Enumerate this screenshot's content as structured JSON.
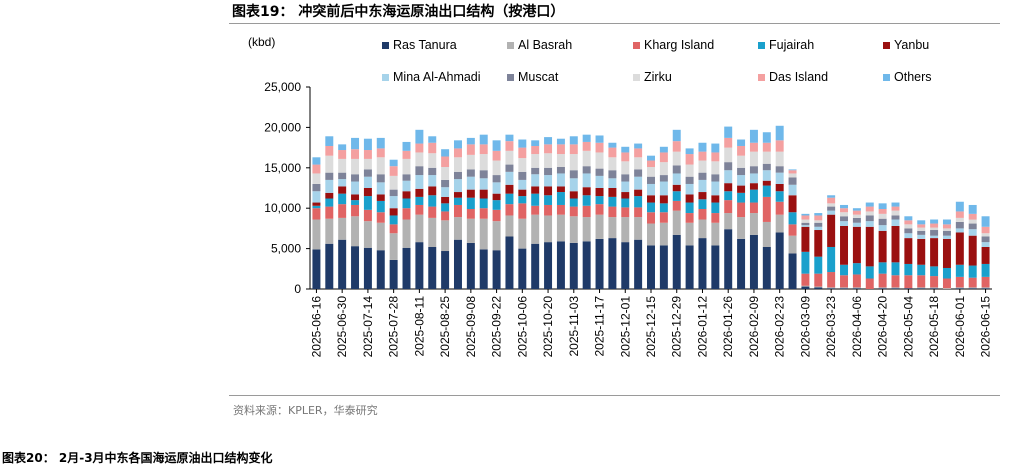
{
  "figure": {
    "title": "图表19： 冲突前后中东海运原油出口结构（按港口）",
    "source": "资料来源：KPLER，华泰研究",
    "next_title": "图表20： 2月-3月中东各国海运原油出口结构变化"
  },
  "chart_data": {
    "type": "bar",
    "stacked": true,
    "ylabel": "(kbd)",
    "ylim": [
      0,
      25000
    ],
    "yticks": [
      0,
      5000,
      10000,
      15000,
      20000,
      25000
    ],
    "ytick_labels": [
      "0",
      "5,000",
      "10,000",
      "15,000",
      "20,000",
      "25,000"
    ],
    "grid": false,
    "legend_position": "top",
    "categories": [
      "2025-06-16",
      "2025-06-23",
      "2025-06-30",
      "2025-07-07",
      "2025-07-14",
      "2025-07-21",
      "2025-07-28",
      "2025-08-04",
      "2025-08-11",
      "2025-08-18",
      "2025-08-25",
      "2025-09-01",
      "2025-09-08",
      "2025-09-15",
      "2025-09-22",
      "2025-09-29",
      "2025-10-06",
      "2025-10-13",
      "2025-10-20",
      "2025-10-27",
      "2025-11-03",
      "2025-11-10",
      "2025-11-17",
      "2025-11-24",
      "2025-12-01",
      "2025-12-08",
      "2025-12-15",
      "2025-12-22",
      "2025-12-29",
      "2026-01-05",
      "2026-01-12",
      "2026-01-19",
      "2026-01-26",
      "2026-02-02",
      "2026-02-09",
      "2026-02-16",
      "2026-02-23",
      "2026-03-02",
      "2026-03-09",
      "2026-03-16",
      "2026-03-23",
      "2026-03-30",
      "2026-04-06",
      "2026-04-13",
      "2026-04-20",
      "2026-04-27",
      "2026-05-04",
      "2026-05-11",
      "2026-05-18",
      "2026-05-25",
      "2026-06-01",
      "2026-06-08",
      "2026-06-15"
    ],
    "xtick_labels": [
      "2025-06-16",
      "2025-06-30",
      "2025-07-14",
      "2025-07-28",
      "2025-08-11",
      "2025-08-25",
      "2025-09-08",
      "2025-09-22",
      "2025-10-06",
      "2025-10-20",
      "2025-11-03",
      "2025-11-17",
      "2025-12-01",
      "2025-12-15",
      "2025-12-29",
      "2026-01-12",
      "2026-01-26",
      "2026-02-09",
      "2026-02-23",
      "2026-03-09",
      "2026-03-23",
      "2026-04-06",
      "2026-04-20",
      "2026-05-04",
      "2026-05-18",
      "2026-06-01",
      "2026-06-15"
    ],
    "series": [
      {
        "name": "Ras Tanura",
        "color": "#1f3a68",
        "values": [
          4900,
          5600,
          6100,
          5300,
          5100,
          4800,
          3600,
          5100,
          5800,
          5200,
          4700,
          6100,
          5700,
          4900,
          4800,
          6500,
          5000,
          5600,
          5800,
          5900,
          5700,
          5900,
          6200,
          6300,
          5800,
          6100,
          5400,
          5400,
          6700,
          5400,
          6300,
          5400,
          7400,
          6200,
          6700,
          5200,
          7000,
          4400,
          300,
          200,
          100,
          100,
          100,
          0,
          100,
          100,
          100,
          100,
          100,
          0,
          100,
          100,
          100
        ]
      },
      {
        "name": "Al Basrah",
        "color": "#b2b2b2",
        "values": [
          3700,
          3100,
          2700,
          3700,
          3300,
          3400,
          3300,
          3500,
          3400,
          3600,
          3800,
          2800,
          3000,
          3800,
          3600,
          2600,
          3700,
          3600,
          3300,
          3300,
          3300,
          3000,
          3000,
          2600,
          3100,
          2800,
          2700,
          2800,
          3000,
          2800,
          2300,
          2800,
          2000,
          2700,
          2700,
          3100,
          2200,
          2200,
          100,
          100,
          100,
          100,
          100,
          0,
          100,
          100,
          0,
          100,
          100,
          100,
          100,
          100,
          100
        ]
      },
      {
        "name": "Kharg Island",
        "color": "#e06464",
        "values": [
          1400,
          1500,
          1700,
          1400,
          1400,
          1300,
          1100,
          1400,
          1200,
          1400,
          1100,
          1500,
          1200,
          1300,
          1400,
          1400,
          1900,
          1100,
          1300,
          1200,
          1200,
          1400,
          1300,
          1300,
          1200,
          1200,
          1400,
          1300,
          1200,
          1200,
          1300,
          1200,
          1600,
          1800,
          1300,
          3100,
          1600,
          1400,
          1500,
          1600,
          1900,
          1500,
          1600,
          1300,
          1700,
          1500,
          1600,
          1500,
          1400,
          1200,
          1300,
          1200,
          1300
        ]
      },
      {
        "name": "Fujairah",
        "color": "#1aa0cc",
        "values": [
          300,
          1000,
          1300,
          600,
          1700,
          1400,
          1100,
          1200,
          1000,
          1400,
          1000,
          900,
          1400,
          1200,
          1200,
          1300,
          900,
          1500,
          1200,
          1600,
          1000,
          1300,
          1000,
          1200,
          1100,
          1400,
          1200,
          1100,
          1200,
          1300,
          1200,
          1300,
          1100,
          1200,
          1600,
          1400,
          1300,
          1500,
          2700,
          2100,
          3100,
          1300,
          1400,
          1500,
          1400,
          1600,
          1400,
          1300,
          1200,
          1300,
          1500,
          1500,
          1600
        ]
      },
      {
        "name": "Yanbu",
        "color": "#9a1010",
        "values": [
          400,
          700,
          900,
          700,
          1000,
          800,
          900,
          900,
          1000,
          1100,
          800,
          700,
          1000,
          1100,
          800,
          1100,
          800,
          900,
          1100,
          700,
          900,
          1000,
          1000,
          1100,
          800,
          800,
          900,
          1000,
          800,
          1000,
          900,
          900,
          1000,
          900,
          800,
          600,
          900,
          2100,
          3100,
          3300,
          4000,
          4800,
          4500,
          4900,
          3900,
          4500,
          3200,
          3200,
          3500,
          3600,
          4000,
          3700,
          2100
        ]
      },
      {
        "name": "Mina Al-Ahmadi",
        "color": "#a6d3ea",
        "values": [
          1400,
          1600,
          900,
          1600,
          1400,
          1500,
          1500,
          1300,
          1700,
          1400,
          1200,
          1600,
          1600,
          1400,
          1400,
          1600,
          1200,
          1500,
          1400,
          1600,
          1600,
          1700,
          1500,
          1200,
          1300,
          1600,
          1400,
          1700,
          1400,
          1300,
          1500,
          1700,
          1600,
          1300,
          1200,
          1300,
          1400,
          1300,
          200,
          400,
          500,
          600,
          500,
          700,
          700,
          800,
          600,
          500,
          300,
          400,
          500,
          800,
          600
        ]
      },
      {
        "name": "Muscat",
        "color": "#7e8399",
        "values": [
          900,
          900,
          800,
          900,
          900,
          1000,
          800,
          800,
          1100,
          900,
          900,
          900,
          900,
          1000,
          900,
          900,
          1000,
          800,
          900,
          800,
          1000,
          900,
          900,
          1000,
          900,
          900,
          900,
          800,
          1000,
          900,
          900,
          900,
          1000,
          900,
          900,
          800,
          800,
          900,
          300,
          500,
          500,
          600,
          600,
          700,
          800,
          500,
          600,
          500,
          700,
          600,
          800,
          700,
          700
        ]
      },
      {
        "name": "Zirku",
        "color": "#dcdcdc",
        "values": [
          1300,
          2100,
          1700,
          1900,
          1300,
          2100,
          1700,
          1900,
          1700,
          1800,
          1600,
          1800,
          1800,
          2000,
          1800,
          1700,
          1700,
          1700,
          1800,
          1600,
          2000,
          1900,
          2000,
          1600,
          1600,
          1500,
          1200,
          1600,
          1700,
          1500,
          1500,
          1600,
          1800,
          1500,
          1800,
          1500,
          1800,
          500,
          400,
          300,
          400,
          500,
          400,
          500,
          600,
          600,
          500,
          400,
          300,
          300,
          500,
          500,
          400
        ]
      },
      {
        "name": "Das Island",
        "color": "#f4a0a0",
        "values": [
          1100,
          1200,
          1100,
          1200,
          1100,
          1100,
          1200,
          1000,
          1100,
          1300,
          1300,
          1100,
          1300,
          1200,
          1200,
          1200,
          1300,
          1000,
          1100,
          1200,
          1200,
          1100,
          1200,
          1200,
          1100,
          1100,
          800,
          1200,
          1300,
          1300,
          1100,
          1100,
          1200,
          1200,
          1100,
          1100,
          1400,
          400,
          500,
          600,
          700,
          500,
          500,
          600,
          600,
          500,
          500,
          400,
          500,
          500,
          800,
          700,
          800
        ]
      },
      {
        "name": "Others",
        "color": "#6fb8ea",
        "values": [
          900,
          1200,
          700,
          1400,
          1400,
          1300,
          800,
          1100,
          1700,
          800,
          900,
          1000,
          800,
          1200,
          1300,
          800,
          1000,
          700,
          900,
          700,
          1000,
          900,
          900,
          600,
          700,
          600,
          600,
          700,
          1400,
          700,
          1100,
          1100,
          1400,
          800,
          1600,
          1300,
          1800,
          100,
          200,
          300,
          300,
          400,
          300,
          500,
          700,
          500,
          500,
          500,
          500,
          600,
          1200,
          1100,
          1300
        ]
      }
    ]
  }
}
